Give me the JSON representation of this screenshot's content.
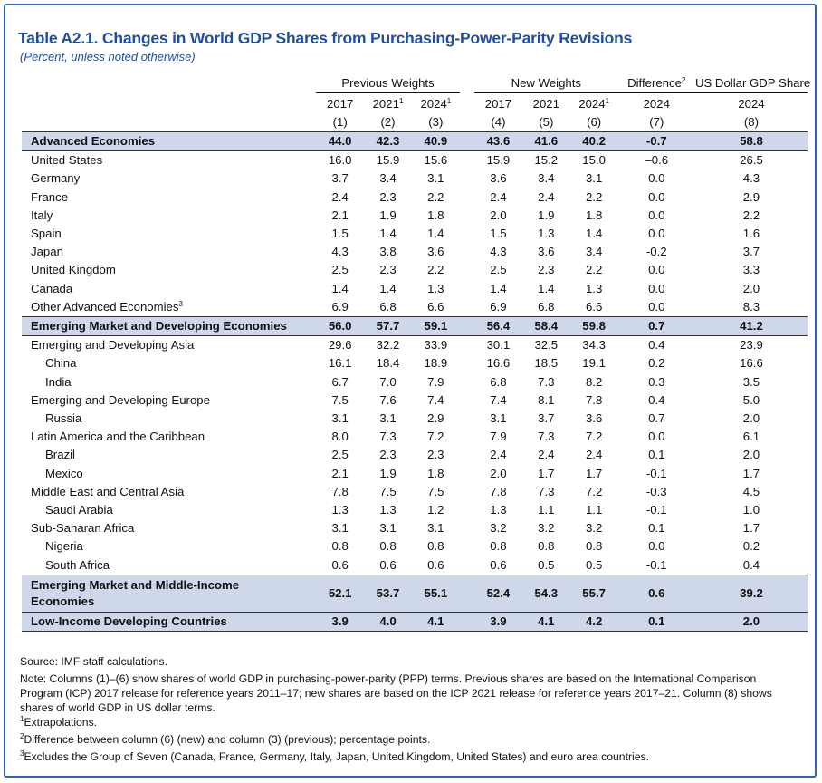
{
  "title": "Table A2.1. Changes in World GDP Shares from Purchasing-Power-Parity Revisions",
  "subtitle": "(Percent, unless noted otherwise)",
  "header": {
    "previous_weights": "Previous Weights",
    "new_weights": "New Weights",
    "difference": "Difference",
    "difference_sup": "2",
    "usd_share": "US Dollar GDP Share",
    "years": [
      "2017",
      "2021",
      "2024",
      "2017",
      "2021",
      "2024",
      "2024",
      "2024"
    ],
    "year_sups": [
      "",
      "1",
      "1",
      "",
      "",
      "1",
      "",
      ""
    ],
    "col_numbers": [
      "(1)",
      "(2)",
      "(3)",
      "(4)",
      "(5)",
      "(6)",
      "(7)",
      "(8)"
    ]
  },
  "rows": [
    {
      "label": "Advanced Economies",
      "values": [
        "44.0",
        "42.3",
        "40.9",
        "43.6",
        "41.6",
        "40.2",
        "-0.7",
        "58.8"
      ]
    },
    {
      "label": "United States",
      "values": [
        "16.0",
        "15.9",
        "15.6",
        "15.9",
        "15.2",
        "15.0",
        "–0.6",
        "26.5"
      ]
    },
    {
      "label": "Germany",
      "values": [
        "3.7",
        "3.4",
        "3.1",
        "3.6",
        "3.4",
        "3.1",
        "0.0",
        "4.3"
      ]
    },
    {
      "label": "France",
      "values": [
        "2.4",
        "2.3",
        "2.2",
        "2.4",
        "2.4",
        "2.2",
        "0.0",
        "2.9"
      ]
    },
    {
      "label": "Italy",
      "values": [
        "2.1",
        "1.9",
        "1.8",
        "2.0",
        "1.9",
        "1.8",
        "0.0",
        "2.2"
      ]
    },
    {
      "label": "Spain",
      "values": [
        "1.5",
        "1.4",
        "1.4",
        "1.5",
        "1.3",
        "1.4",
        "0.0",
        "1.6"
      ]
    },
    {
      "label": "Japan",
      "values": [
        "4.3",
        "3.8",
        "3.6",
        "4.3",
        "3.6",
        "3.4",
        "-0.2",
        "3.7"
      ]
    },
    {
      "label": "United Kingdom",
      "values": [
        "2.5",
        "2.3",
        "2.2",
        "2.5",
        "2.3",
        "2.2",
        "0.0",
        "3.3"
      ]
    },
    {
      "label": "Canada",
      "values": [
        "1.4",
        "1.4",
        "1.3",
        "1.4",
        "1.4",
        "1.3",
        "0.0",
        "2.0"
      ]
    },
    {
      "label": "Other Advanced Economies",
      "label_sup": "3",
      "values": [
        "6.9",
        "6.8",
        "6.6",
        "6.9",
        "6.8",
        "6.6",
        "0.0",
        "8.3"
      ]
    },
    {
      "label": "Emerging Market and Developing Economies",
      "values": [
        "56.0",
        "57.7",
        "59.1",
        "56.4",
        "58.4",
        "59.8",
        "0.7",
        "41.2"
      ]
    },
    {
      "label": "Emerging and Developing Asia",
      "values": [
        "29.6",
        "32.2",
        "33.9",
        "30.1",
        "32.5",
        "34.3",
        "0.4",
        "23.9"
      ]
    },
    {
      "label": "China",
      "values": [
        "16.1",
        "18.4",
        "18.9",
        "16.6",
        "18.5",
        "19.1",
        "0.2",
        "16.6"
      ]
    },
    {
      "label": "India",
      "values": [
        "6.7",
        "7.0",
        "7.9",
        "6.8",
        "7.3",
        "8.2",
        "0.3",
        "3.5"
      ]
    },
    {
      "label": "Emerging and Developing Europe",
      "values": [
        "7.5",
        "7.6",
        "7.4",
        "7.4",
        "8.1",
        "7.8",
        "0.4",
        "5.0"
      ]
    },
    {
      "label": "Russia",
      "values": [
        "3.1",
        "3.1",
        "2.9",
        "3.1",
        "3.7",
        "3.6",
        "0.7",
        "2.0"
      ]
    },
    {
      "label": "Latin America and the Caribbean",
      "values": [
        "8.0",
        "7.3",
        "7.2",
        "7.9",
        "7.3",
        "7.2",
        "0.0",
        "6.1"
      ]
    },
    {
      "label": "Brazil",
      "values": [
        "2.5",
        "2.3",
        "2.3",
        "2.4",
        "2.4",
        "2.4",
        "0.1",
        "2.0"
      ]
    },
    {
      "label": "Mexico",
      "values": [
        "2.1",
        "1.9",
        "1.8",
        "2.0",
        "1.7",
        "1.7",
        "-0.1",
        "1.7"
      ]
    },
    {
      "label": "Middle East and Central Asia",
      "values": [
        "7.8",
        "7.5",
        "7.5",
        "7.8",
        "7.3",
        "7.2",
        "-0.3",
        "4.5"
      ]
    },
    {
      "label": "Saudi Arabia",
      "values": [
        "1.3",
        "1.3",
        "1.2",
        "1.3",
        "1.1",
        "1.1",
        "-0.1",
        "1.0"
      ]
    },
    {
      "label": "Sub-Saharan Africa",
      "values": [
        "3.1",
        "3.1",
        "3.1",
        "3.2",
        "3.2",
        "3.2",
        "0.1",
        "1.7"
      ]
    },
    {
      "label": "Nigeria",
      "values": [
        "0.8",
        "0.8",
        "0.8",
        "0.8",
        "0.8",
        "0.8",
        "0.0",
        "0.2"
      ]
    },
    {
      "label": "South Africa",
      "values": [
        "0.6",
        "0.6",
        "0.6",
        "0.6",
        "0.5",
        "0.5",
        "-0.1",
        "0.4"
      ]
    },
    {
      "label_line1": "Emerging Market and Middle-Income",
      "label_line2": "Economies",
      "values": [
        "52.1",
        "53.7",
        "55.1",
        "52.4",
        "54.3",
        "55.7",
        "0.6",
        "39.2"
      ]
    },
    {
      "label": "Low-Income Developing Countries",
      "values": [
        "3.9",
        "4.0",
        "4.1",
        "3.9",
        "4.1",
        "4.2",
        "0.1",
        "2.0"
      ]
    }
  ],
  "notes": {
    "source": "Source: IMF staff calculations.",
    "note": "Note: Columns (1)–(6) show shares of world GDP in purchasing-power-parity (PPP) terms. Previous shares are based on the International Comparison Program (ICP) 2017 release for reference years 2011–17; new shares are based on the ICP 2021 release for reference years 2017–21. Column (8) shows shares of world GDP in US dollar terms.",
    "fn1_mark": "1",
    "fn1": "Extrapolations.",
    "fn2_mark": "2",
    "fn2": "Difference between column (6) (new) and column (3) (previous); percentage points.",
    "fn3_mark": "3",
    "fn3": "Excludes the Group of Seven (Canada, France, Germany, Italy, Japan, United Kingdom, United States) and euro area countries."
  },
  "colors": {
    "frame": "#2f62b8",
    "title": "#1f4e9c",
    "aggregate_row": "#cfd7ea"
  }
}
